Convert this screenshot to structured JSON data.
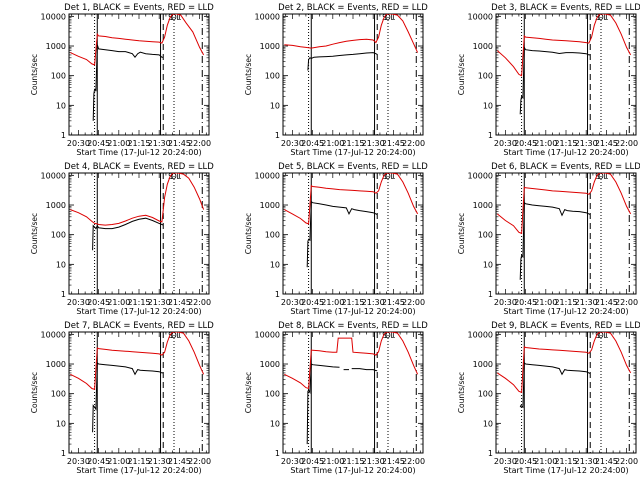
{
  "figure": {
    "events_color": "#000000",
    "lld_color": "#dd0000",
    "axis_color": "#000000"
  },
  "shared": {
    "xlabel": "Start Time (17-Jul-12 20:24:00)",
    "ylabel": "Counts/sec",
    "x_tick_labels": [
      "20:30",
      "20:45",
      "21:00",
      "21:15",
      "21:30",
      "21:45",
      "22:00"
    ],
    "x_tick_minutes": [
      30,
      45,
      60,
      75,
      90,
      105,
      120
    ],
    "y_tick_labels": [
      "1",
      "10",
      "100",
      "1000",
      "10000"
    ],
    "y_tick_values": [
      1,
      10,
      100,
      1000,
      10000
    ],
    "xlim_minutes": [
      23,
      127
    ],
    "ylim": [
      1,
      12000
    ],
    "marker_labels": [
      "S",
      "D",
      "L"
    ],
    "vertical_lines": [
      {
        "minute": 42,
        "style": "dotted"
      },
      {
        "minute": 44,
        "style": "solid"
      },
      {
        "minute": 91,
        "style": "solid"
      },
      {
        "minute": 93,
        "style": "dashed"
      },
      {
        "minute": 101,
        "style": "dotted"
      },
      {
        "minute": 122,
        "style": "dashdot"
      }
    ]
  },
  "chart_data": [
    {
      "type": "line",
      "title": "Det 1, BLACK = Events, RED = LLD",
      "series": [
        {
          "name": "Events",
          "x": [
            41,
            41.5,
            42,
            42.5,
            43,
            44,
            45,
            50,
            55,
            60,
            65,
            70,
            72,
            74,
            76,
            80,
            85,
            90,
            92,
            93
          ],
          "y": [
            3,
            25,
            35,
            35,
            30,
            1100,
            800,
            750,
            700,
            650,
            650,
            550,
            420,
            550,
            620,
            550,
            520,
            500,
            420,
            420
          ]
        },
        {
          "name": "LLD",
          "x": [
            24,
            30,
            36,
            40,
            42,
            44,
            45,
            50,
            55,
            60,
            65,
            70,
            75,
            80,
            85,
            90,
            92,
            94,
            96,
            98,
            100,
            103,
            106,
            110,
            115,
            120,
            123
          ],
          "y": [
            600,
            450,
            350,
            250,
            230,
            2500,
            2200,
            2100,
            1900,
            1800,
            1700,
            1600,
            1500,
            1450,
            1400,
            1350,
            1250,
            2000,
            5000,
            9000,
            12000,
            12000,
            11000,
            6000,
            3000,
            900,
            500
          ]
        }
      ]
    },
    {
      "type": "line",
      "title": "Det 2, BLACK = Events, RED = LLD",
      "series": [
        {
          "name": "Events",
          "x": [
            41.5,
            42,
            43,
            44,
            46,
            50,
            55,
            60,
            65,
            70,
            75,
            80,
            85,
            90,
            92,
            93
          ],
          "y": [
            150,
            350,
            400,
            380,
            420,
            430,
            440,
            450,
            480,
            500,
            520,
            550,
            580,
            600,
            550,
            520
          ]
        },
        {
          "name": "LLD",
          "x": [
            24,
            30,
            36,
            40,
            44,
            50,
            55,
            60,
            65,
            70,
            75,
            80,
            85,
            90,
            92,
            94,
            96,
            98,
            100,
            104,
            108,
            112,
            116,
            120,
            123
          ],
          "y": [
            1100,
            1050,
            950,
            900,
            850,
            950,
            1000,
            1150,
            1300,
            1450,
            1550,
            1650,
            1700,
            1600,
            1300,
            2000,
            5000,
            9000,
            12000,
            12000,
            11000,
            7000,
            3000,
            1200,
            600
          ]
        }
      ]
    },
    {
      "type": "line",
      "title": "Det 3, BLACK = Events, RED = LLD",
      "series": [
        {
          "name": "Events",
          "x": [
            41,
            41.5,
            42,
            43,
            44,
            45,
            50,
            55,
            60,
            65,
            70,
            75,
            80,
            85,
            90,
            92,
            93
          ],
          "y": [
            5,
            15,
            20,
            18,
            900,
            750,
            700,
            680,
            650,
            620,
            560,
            600,
            600,
            580,
            550,
            500,
            500
          ]
        },
        {
          "name": "LLD",
          "x": [
            24,
            30,
            36,
            40,
            42,
            44,
            45,
            50,
            55,
            60,
            65,
            70,
            75,
            80,
            85,
            90,
            92,
            94,
            96,
            98,
            100,
            104,
            108,
            112,
            116,
            120,
            123
          ],
          "y": [
            700,
            400,
            200,
            110,
            100,
            2200,
            2000,
            1900,
            1800,
            1700,
            1600,
            1550,
            1500,
            1450,
            1400,
            1300,
            1250,
            2000,
            5000,
            9000,
            12000,
            12000,
            11000,
            6000,
            2500,
            900,
            500
          ]
        }
      ]
    },
    {
      "type": "line",
      "title": "Det 4, BLACK = Events, RED = LLD",
      "series": [
        {
          "name": "Events",
          "x": [
            40.5,
            41,
            42,
            43,
            44,
            45,
            50,
            55,
            60,
            65,
            70,
            75,
            80,
            85,
            90,
            92,
            93
          ],
          "y": [
            30,
            200,
            180,
            160,
            200,
            170,
            160,
            160,
            180,
            220,
            280,
            330,
            360,
            300,
            240,
            220,
            210
          ]
        },
        {
          "name": "LLD",
          "x": [
            24,
            30,
            36,
            40,
            42,
            44,
            45,
            50,
            55,
            60,
            65,
            70,
            75,
            80,
            85,
            90,
            92,
            94,
            96,
            98,
            100,
            104,
            108,
            112,
            116,
            120,
            123
          ],
          "y": [
            700,
            550,
            400,
            280,
            240,
            230,
            220,
            210,
            220,
            240,
            290,
            360,
            420,
            450,
            380,
            290,
            270,
            1800,
            5000,
            9000,
            12000,
            12000,
            11000,
            8000,
            4000,
            1600,
            700
          ]
        }
      ]
    },
    {
      "type": "line",
      "title": "Det 5, BLACK = Events, RED = LLD",
      "series": [
        {
          "name": "Events",
          "x": [
            41,
            41.5,
            42,
            43,
            44,
            45,
            50,
            55,
            60,
            65,
            70,
            72,
            74,
            76,
            80,
            85,
            90,
            92,
            93
          ],
          "y": [
            8,
            60,
            70,
            65,
            1300,
            1200,
            1100,
            1000,
            900,
            850,
            800,
            500,
            750,
            700,
            650,
            600,
            550,
            500,
            480
          ]
        },
        {
          "name": "LLD",
          "x": [
            24,
            30,
            36,
            40,
            42,
            44,
            45,
            50,
            55,
            60,
            65,
            70,
            75,
            80,
            85,
            90,
            92,
            94,
            96,
            98,
            100,
            104,
            108,
            112,
            116,
            120,
            123
          ],
          "y": [
            700,
            500,
            350,
            250,
            230,
            4500,
            4200,
            4000,
            3700,
            3500,
            3300,
            3200,
            3100,
            3000,
            2900,
            2800,
            2500,
            3000,
            6000,
            10000,
            12000,
            12000,
            11000,
            6000,
            2500,
            900,
            500
          ]
        }
      ]
    },
    {
      "type": "line",
      "title": "Det 6, BLACK = Events, RED = LLD",
      "series": [
        {
          "name": "Events",
          "x": [
            41,
            41.5,
            42,
            43,
            44,
            45,
            50,
            55,
            60,
            65,
            70,
            72,
            74,
            76,
            80,
            85,
            90,
            92,
            93
          ],
          "y": [
            3,
            15,
            20,
            18,
            1200,
            1100,
            1000,
            950,
            900,
            850,
            750,
            450,
            700,
            650,
            620,
            600,
            550,
            500,
            480
          ]
        },
        {
          "name": "LLD",
          "x": [
            24,
            30,
            36,
            40,
            42,
            44,
            45,
            50,
            55,
            60,
            65,
            70,
            75,
            80,
            85,
            90,
            92,
            94,
            96,
            98,
            100,
            104,
            108,
            112,
            116,
            120,
            123
          ],
          "y": [
            500,
            300,
            200,
            120,
            110,
            4000,
            3800,
            3600,
            3400,
            3200,
            3000,
            2900,
            2800,
            2700,
            2600,
            2500,
            2300,
            3000,
            6000,
            10000,
            12000,
            12000,
            11000,
            6000,
            2500,
            900,
            500
          ]
        }
      ]
    },
    {
      "type": "line",
      "title": "Det 7, BLACK = Events, RED = LLD",
      "series": [
        {
          "name": "Events",
          "x": [
            40.5,
            41,
            42,
            43,
            44,
            45,
            50,
            55,
            60,
            65,
            70,
            72,
            74,
            76,
            80,
            85,
            90,
            92,
            93
          ],
          "y": [
            5,
            40,
            35,
            30,
            1100,
            1000,
            950,
            900,
            850,
            800,
            700,
            450,
            650,
            620,
            600,
            580,
            550,
            500,
            500
          ]
        },
        {
          "name": "LLD",
          "x": [
            24,
            30,
            36,
            40,
            42,
            44,
            45,
            50,
            55,
            60,
            65,
            70,
            75,
            80,
            85,
            90,
            92,
            94,
            96,
            98,
            100,
            104,
            108,
            112,
            116,
            120,
            123
          ],
          "y": [
            450,
            330,
            220,
            150,
            140,
            3500,
            3300,
            3100,
            2900,
            2800,
            2700,
            2600,
            2500,
            2400,
            2300,
            2200,
            2000,
            2500,
            5500,
            9500,
            12000,
            12000,
            11000,
            6000,
            2500,
            900,
            450
          ]
        }
      ]
    },
    {
      "type": "line",
      "title": "Det 8, BLACK = Events, RED = LLD",
      "series": [
        {
          "name": "Events",
          "x": [
            41,
            41.5,
            42,
            43,
            44,
            45,
            50,
            55,
            60,
            65,
            67,
            68,
            70,
            72,
            73,
            74,
            75,
            80,
            85,
            90,
            92,
            93
          ],
          "y": [
            2,
            120,
            130,
            110,
            1000,
            950,
            900,
            850,
            800,
            780,
            null,
            650,
            650,
            650,
            null,
            700,
            700,
            700,
            650,
            650,
            600,
            600
          ]
        },
        {
          "name": "LLD",
          "x": [
            24,
            30,
            36,
            40,
            42,
            44,
            45,
            50,
            55,
            60,
            63,
            64,
            70,
            74,
            75,
            80,
            85,
            90,
            92,
            94,
            96,
            98,
            100,
            104,
            108,
            112,
            116,
            120,
            123
          ],
          "y": [
            450,
            330,
            230,
            160,
            150,
            3000,
            2900,
            2800,
            2600,
            2500,
            2500,
            7500,
            7500,
            7500,
            2500,
            2400,
            2300,
            2200,
            2000,
            2600,
            6000,
            10000,
            12000,
            12000,
            11000,
            6000,
            2500,
            900,
            450
          ]
        }
      ]
    },
    {
      "type": "line",
      "title": "Det 9, BLACK = Events, RED = LLD",
      "series": [
        {
          "name": "Events",
          "x": [
            41,
            41.5,
            42,
            43,
            44,
            45,
            50,
            55,
            60,
            65,
            70,
            72,
            74,
            76,
            80,
            85,
            90,
            92,
            93
          ],
          "y": [
            35,
            40,
            38,
            35,
            1100,
            1000,
            950,
            900,
            850,
            800,
            700,
            450,
            650,
            620,
            600,
            580,
            550,
            500,
            480
          ]
        },
        {
          "name": "LLD",
          "x": [
            24,
            30,
            36,
            40,
            42,
            44,
            45,
            50,
            55,
            60,
            65,
            70,
            75,
            80,
            85,
            90,
            92,
            94,
            96,
            98,
            100,
            104,
            108,
            112,
            116,
            120,
            123
          ],
          "y": [
            500,
            330,
            200,
            120,
            110,
            3800,
            3600,
            3400,
            3200,
            3100,
            3000,
            2900,
            2800,
            2700,
            2600,
            2500,
            2300,
            3000,
            6000,
            10000,
            12000,
            12000,
            11000,
            6000,
            2500,
            900,
            500
          ]
        }
      ]
    }
  ]
}
